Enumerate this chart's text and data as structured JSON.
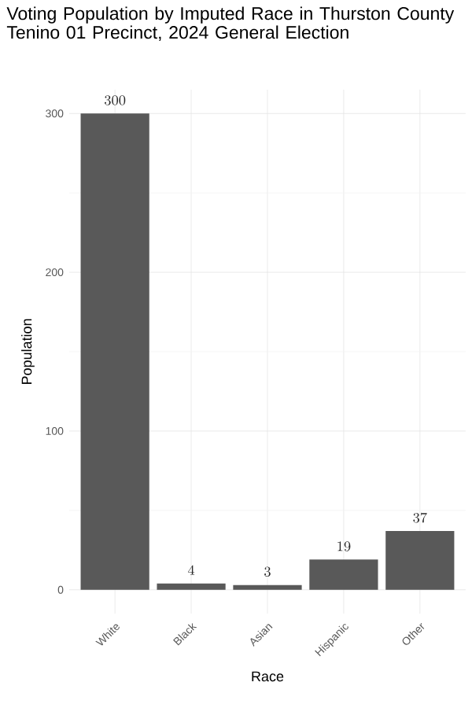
{
  "chart_data": {
    "type": "bar",
    "title": "Voting Population by Imputed Race in Thurston County",
    "subtitle": "Tenino 01 Precinct,  2024 General Election",
    "xlabel": "Race",
    "ylabel": "Population",
    "categories": [
      "White",
      "Black",
      "Asian",
      "Hispanic",
      "Other"
    ],
    "values": [
      300,
      4,
      3,
      19,
      37
    ],
    "color": "#595959",
    "ylim": [
      -15,
      315
    ],
    "yticks": [
      0,
      100,
      200,
      300
    ],
    "grid": true,
    "data_labels": true
  }
}
